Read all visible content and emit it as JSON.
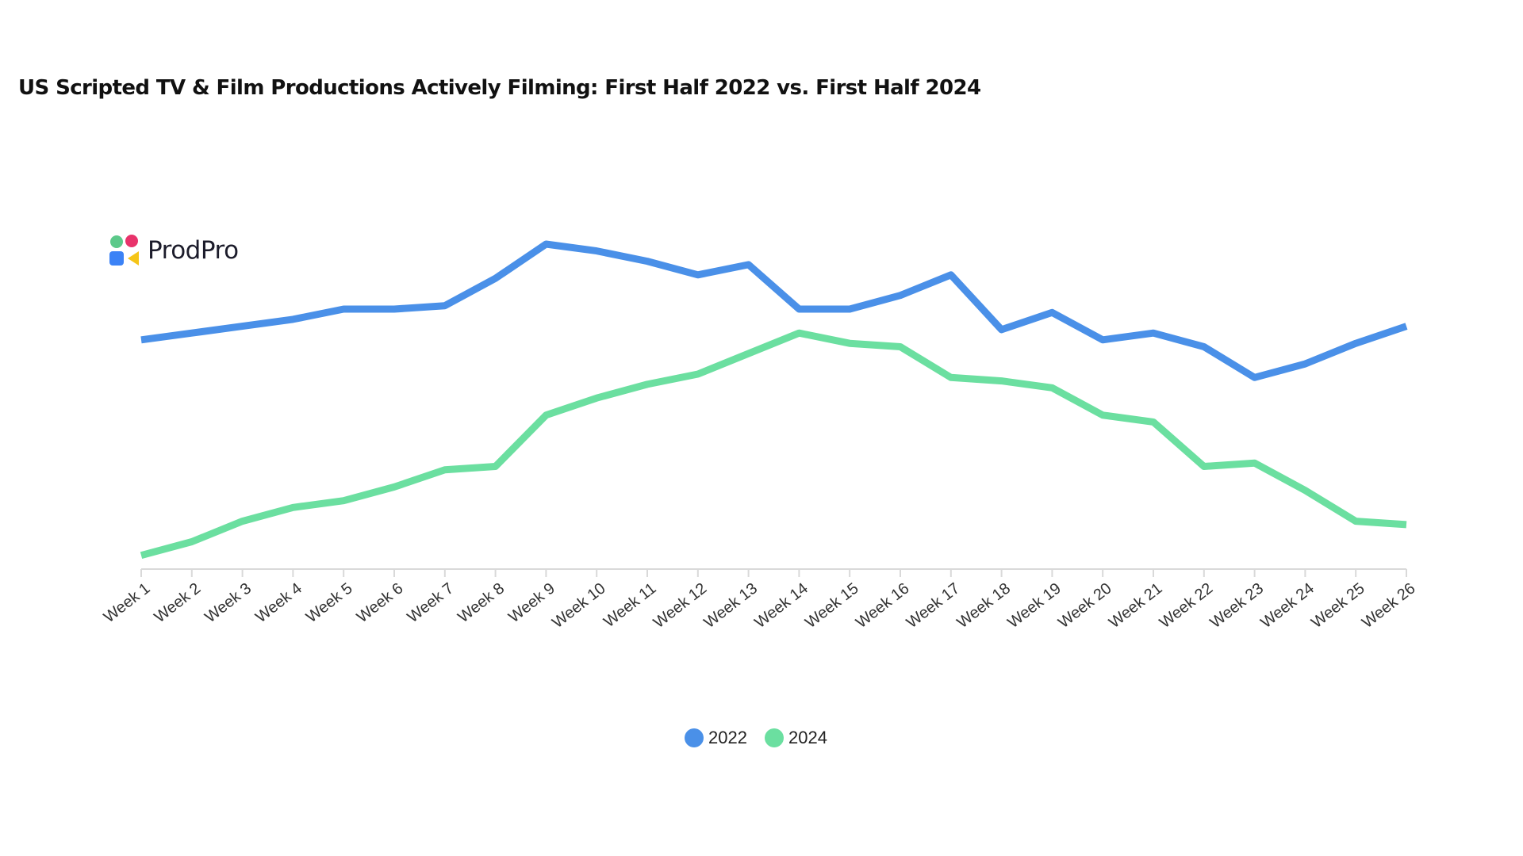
{
  "chart_data": {
    "type": "line",
    "title": "US Scripted TV & Film Productions Actively Filming: First Half 2022 vs. First Half 2024",
    "xlabel": "",
    "ylabel": "",
    "categories": [
      "Week 1",
      "Week 2",
      "Week 3",
      "Week 4",
      "Week 5",
      "Week 6",
      "Week 7",
      "Week 8",
      "Week 9",
      "Week 10",
      "Week 11",
      "Week 12",
      "Week 13",
      "Week 14",
      "Week 15",
      "Week 16",
      "Week 17",
      "Week 18",
      "Week 19",
      "Week 20",
      "Week 21",
      "Week 22",
      "Week 23",
      "Week 24",
      "Week 25",
      "Week 26"
    ],
    "series": [
      {
        "name": "2022",
        "color": "#4a90e8",
        "values": [
          67,
          69,
          71,
          73,
          76,
          76,
          77,
          85,
          95,
          93,
          90,
          86,
          89,
          76,
          76,
          80,
          86,
          70,
          75,
          67,
          69,
          65,
          56,
          60,
          66,
          71
        ]
      },
      {
        "name": "2024",
        "color": "#6bdfa0",
        "values": [
          4,
          8,
          14,
          18,
          20,
          24,
          29,
          30,
          45,
          50,
          54,
          57,
          63,
          69,
          66,
          65,
          56,
          55,
          53,
          45,
          43,
          30,
          31,
          23,
          14,
          13
        ]
      }
    ],
    "ylim": [
      0,
      95
    ],
    "grid": false,
    "y_axis_visible": false,
    "legend_position": "bottom-center"
  },
  "logo": {
    "text": "ProdPro",
    "colors": [
      "#5cc98a",
      "#e8336b",
      "#3b82f6",
      "#f5c518"
    ]
  },
  "legend": {
    "items": [
      {
        "label": "2022",
        "color": "#4a90e8"
      },
      {
        "label": "2024",
        "color": "#6bdfa0"
      }
    ]
  }
}
